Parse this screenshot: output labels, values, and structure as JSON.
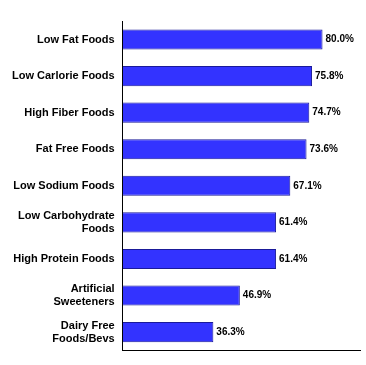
{
  "chart_data": {
    "type": "bar",
    "orientation": "horizontal",
    "categories": [
      "Low Fat Foods",
      "Low Carlorie Foods",
      "High Fiber Foods",
      "Fat Free Foods",
      "Low Sodium Foods",
      "Low Carbohydrate Foods",
      "High Protein Foods",
      "Artificial Sweeteners",
      "Dairy Free Foods/Bevs"
    ],
    "values": [
      80.0,
      75.8,
      74.7,
      73.6,
      67.1,
      61.4,
      61.4,
      46.9,
      36.3
    ],
    "value_labels": [
      "80.0%",
      "75.8%",
      "74.7%",
      "73.6%",
      "67.1%",
      "61.4%",
      "61.4%",
      "46.9%",
      "36.3%"
    ],
    "color": "#3333ff",
    "xlim": [
      0,
      95
    ],
    "grid": false,
    "data_labels": true,
    "tick_labels": "y"
  }
}
